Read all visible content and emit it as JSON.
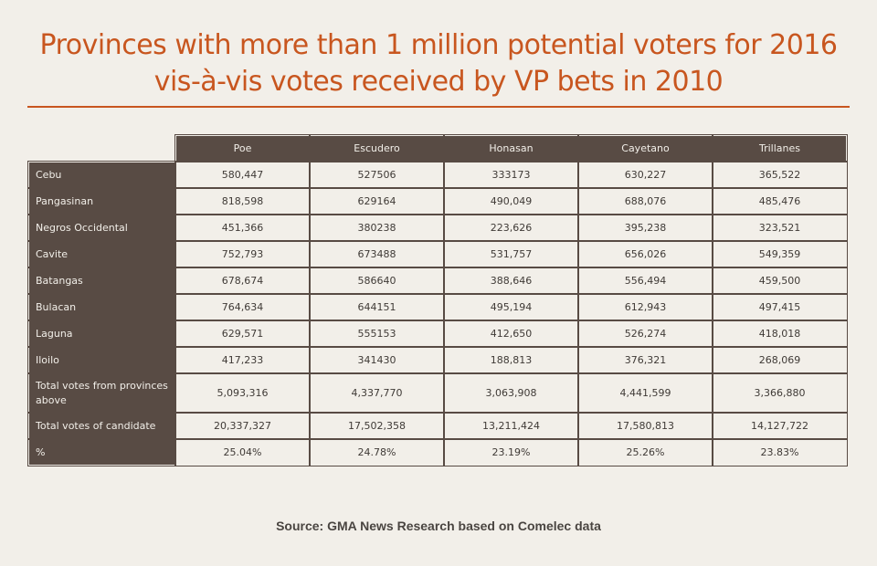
{
  "title": {
    "line1": "Provinces with more than 1 million potential voters for 2016",
    "line2": "vis-à-vis votes received by VP bets in 2010"
  },
  "table": {
    "headers": [
      "Poe",
      "Escudero",
      "Honasan",
      "Cayetano",
      "Trillanes"
    ],
    "rows": [
      {
        "label": "Cebu",
        "values": [
          "580,447",
          "527506",
          "333173",
          "630,227",
          "365,522"
        ]
      },
      {
        "label": "Pangasinan",
        "values": [
          "818,598",
          "629164",
          "490,049",
          "688,076",
          "485,476"
        ]
      },
      {
        "label": "Negros Occidental",
        "values": [
          "451,366",
          "380238",
          "223,626",
          "395,238",
          "323,521"
        ]
      },
      {
        "label": "Cavite",
        "values": [
          "752,793",
          "673488",
          "531,757",
          "656,026",
          "549,359"
        ]
      },
      {
        "label": "Batangas",
        "values": [
          "678,674",
          "586640",
          "388,646",
          "556,494",
          "459,500"
        ]
      },
      {
        "label": "Bulacan",
        "values": [
          "764,634",
          "644151",
          "495,194",
          "612,943",
          "497,415"
        ]
      },
      {
        "label": "Laguna",
        "values": [
          "629,571",
          "555153",
          "412,650",
          "526,274",
          "418,018"
        ]
      },
      {
        "label": "Iloilo",
        "values": [
          "417,233",
          "341430",
          "188,813",
          "376,321",
          "268,069"
        ]
      },
      {
        "label": "Total votes from provinces above",
        "values": [
          "5,093,316",
          "4,337,770",
          "3,063,908",
          "4,441,599",
          "3,366,880"
        ]
      },
      {
        "label": "Total votes of candidate",
        "values": [
          "20,337,327",
          "17,502,358",
          "13,211,424",
          "17,580,813",
          "14,127,722"
        ]
      },
      {
        "label": "%",
        "values": [
          "25.04%",
          "24.78%",
          "23.19%",
          "25.26%",
          "23.83%"
        ]
      }
    ]
  },
  "source": "Source: GMA News Research based on Comelec data",
  "colors": {
    "accent": "#c8561f",
    "header_bg": "#584b44",
    "background": "#f2efe9"
  }
}
